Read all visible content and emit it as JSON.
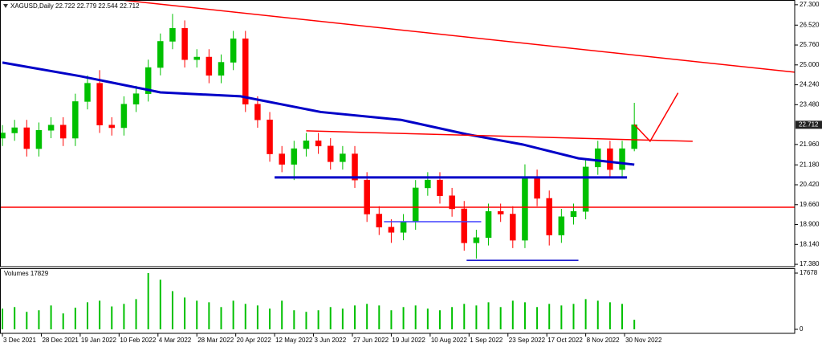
{
  "chart_data": {
    "type": "candlestick",
    "title": "XAGUSD,Daily 22.722 22.779 22.544 22.712",
    "up_color": "#00c000",
    "down_color": "#ff0000",
    "x": [
      0,
      5,
      10,
      15,
      20,
      25,
      30,
      35,
      40,
      45,
      50,
      55,
      60,
      65,
      70,
      75,
      80,
      85,
      90,
      95,
      100,
      105,
      110,
      115,
      120,
      125,
      130,
      135,
      140,
      145,
      150,
      155,
      160,
      165,
      170,
      175,
      180,
      185,
      190,
      195,
      200,
      205,
      210,
      215,
      220,
      225,
      230,
      235,
      240,
      245,
      250,
      255,
      260
    ],
    "open": [
      22.2,
      22.4,
      22.6,
      21.8,
      22.5,
      22.7,
      22.2,
      23.6,
      24.3,
      22.7,
      22.6,
      23.5,
      23.9,
      24.9,
      25.9,
      26.4,
      25.2,
      25.3,
      24.6,
      25.1,
      26.0,
      23.5,
      22.9,
      21.6,
      21.2,
      21.8,
      22.1,
      21.9,
      21.3,
      21.6,
      20.6,
      19.3,
      18.8,
      18.6,
      19.0,
      20.3,
      20.6,
      20.0,
      19.5,
      18.2,
      18.4,
      19.4,
      19.3,
      18.3,
      20.7,
      19.9,
      18.5,
      19.2,
      19.4,
      21.1,
      21.8,
      21.0,
      21.8
    ],
    "high": [
      22.7,
      22.9,
      22.9,
      22.8,
      23.0,
      23.0,
      23.9,
      24.6,
      24.8,
      23.0,
      23.8,
      24.2,
      25.2,
      26.2,
      26.95,
      26.7,
      25.6,
      25.6,
      25.4,
      26.3,
      26.3,
      23.8,
      23.2,
      21.9,
      22.1,
      22.4,
      22.4,
      22.2,
      21.9,
      21.9,
      20.9,
      19.6,
      19.1,
      19.3,
      20.6,
      20.9,
      20.9,
      20.3,
      19.8,
      18.7,
      19.7,
      19.7,
      19.6,
      21.2,
      21.0,
      20.2,
      19.5,
      19.7,
      21.4,
      22.1,
      22.1,
      22.1,
      23.55
    ],
    "low": [
      21.9,
      22.1,
      21.5,
      21.5,
      22.2,
      21.9,
      21.9,
      23.3,
      22.4,
      22.3,
      22.3,
      23.2,
      23.6,
      24.6,
      25.6,
      24.9,
      24.9,
      24.3,
      24.3,
      24.8,
      23.2,
      22.6,
      21.3,
      20.9,
      20.6,
      21.5,
      21.6,
      21.0,
      21.0,
      20.3,
      19.0,
      18.5,
      18.2,
      18.3,
      18.7,
      20.0,
      19.7,
      19.2,
      17.9,
      17.6,
      18.1,
      19.0,
      18.0,
      18.0,
      19.6,
      18.1,
      18.2,
      18.9,
      19.1,
      20.8,
      20.7,
      20.7,
      21.7
    ],
    "close": [
      22.4,
      22.6,
      21.8,
      22.5,
      22.7,
      22.2,
      23.6,
      24.3,
      22.7,
      22.6,
      23.5,
      23.9,
      24.9,
      25.9,
      26.4,
      25.2,
      25.3,
      24.6,
      25.1,
      26.0,
      23.5,
      22.9,
      21.6,
      21.2,
      21.8,
      22.1,
      21.9,
      21.3,
      21.6,
      20.6,
      19.3,
      18.8,
      18.6,
      19.0,
      20.3,
      20.6,
      20.0,
      19.5,
      18.2,
      18.4,
      19.4,
      19.3,
      18.3,
      20.7,
      19.9,
      18.5,
      19.2,
      19.4,
      21.1,
      21.8,
      21.0,
      21.8,
      22.712
    ],
    "xlim": [
      -1,
      326
    ],
    "ylim": [
      17.29,
      27.48
    ],
    "yticks": [
      {
        "value": 27.3,
        "label": "27.300"
      },
      {
        "value": 26.52,
        "label": "26.520"
      },
      {
        "value": 25.76,
        "label": "25.760"
      },
      {
        "value": 25.0,
        "label": "25.000"
      },
      {
        "value": 24.24,
        "label": "24.240"
      },
      {
        "value": 23.48,
        "label": "23.480"
      },
      {
        "value": 21.96,
        "label": "21.960"
      },
      {
        "value": 21.18,
        "label": "21.180"
      },
      {
        "value": 20.42,
        "label": "20.420"
      },
      {
        "value": 19.66,
        "label": "19.660"
      },
      {
        "value": 18.9,
        "label": "18.900"
      },
      {
        "value": 18.14,
        "label": "18.140"
      },
      {
        "value": 17.38,
        "label": "17.380"
      }
    ],
    "xticks": [
      {
        "value": 0,
        "label": "3 Dec 2021"
      },
      {
        "value": 16,
        "label": "28 Dec 2021"
      },
      {
        "value": 32,
        "label": "19 Jan 2022"
      },
      {
        "value": 48,
        "label": "10 Feb 2022"
      },
      {
        "value": 64,
        "label": "4 Mar 2022"
      },
      {
        "value": 80,
        "label": "28 Mar 2022"
      },
      {
        "value": 96,
        "label": "20 Apr 2022"
      },
      {
        "value": 112,
        "label": "12 May 2022"
      },
      {
        "value": 128,
        "label": "3 Jun 2022"
      },
      {
        "value": 144,
        "label": "27 Jun 2022"
      },
      {
        "value": 160,
        "label": "19 Jul 2022"
      },
      {
        "value": 176,
        "label": "10 Aug 2022"
      },
      {
        "value": 192,
        "label": "1 Sep 2022"
      },
      {
        "value": 208,
        "label": "23 Sep 2022"
      },
      {
        "value": 224,
        "label": "17 Oct 2022"
      },
      {
        "value": 240,
        "label": "8 Nov 2022"
      },
      {
        "value": 256,
        "label": "30 Nov 2022"
      }
    ],
    "current_price": 22.712,
    "moving_average": {
      "color": "#0000c8",
      "x": [
        0,
        32,
        65,
        98,
        131,
        164,
        191,
        214,
        237,
        260
      ],
      "values": [
        25.09,
        24.57,
        23.95,
        23.8,
        23.2,
        22.9,
        22.35,
        21.96,
        21.43,
        21.19
      ]
    },
    "lines": [
      {
        "color": "#ff0000",
        "x": [
          50,
          326
        ],
        "values": [
          27.47,
          24.72
        ]
      },
      {
        "color": "#ff0000",
        "x": [
          125,
          284
        ],
        "values": [
          22.48,
          22.08
        ]
      },
      {
        "color": "#ff0000",
        "x": [
          -1,
          326
        ],
        "values": [
          19.56,
          19.56
        ]
      },
      {
        "color": "#ff0000",
        "x": [
          260,
          266.5,
          278
        ],
        "values": [
          22.72,
          22.08,
          23.93
        ]
      },
      {
        "color": "#0000c8",
        "x": [
          112,
          257
        ],
        "values": [
          20.7,
          20.7
        ]
      },
      {
        "color": "#4040ff",
        "x": [
          157,
          197
        ],
        "values": [
          19.01,
          19.01
        ]
      },
      {
        "color": "#0000c8",
        "x": [
          191,
          237
        ],
        "values": [
          17.53,
          17.53
        ]
      }
    ],
    "volume": {
      "title": "Volumes 17829",
      "color": "#00c000",
      "values": [
        6500,
        7000,
        5500,
        6000,
        7500,
        5000,
        6800,
        8500,
        9000,
        7200,
        8000,
        9500,
        17678,
        15600,
        12000,
        10000,
        9000,
        8500,
        7000,
        9000,
        8000,
        7500,
        6500,
        9000,
        6000,
        5500,
        6000,
        7000,
        6500,
        7500,
        8000,
        7500,
        6000,
        7000,
        7500,
        6500,
        6000,
        7000,
        8000,
        7500,
        8500,
        7000,
        9000,
        8500,
        7000,
        8000,
        7500,
        8000,
        9500,
        9000,
        8500,
        8000,
        3000
      ],
      "ylim": [
        0,
        19190
      ],
      "yticks": [
        17678,
        0
      ]
    }
  }
}
